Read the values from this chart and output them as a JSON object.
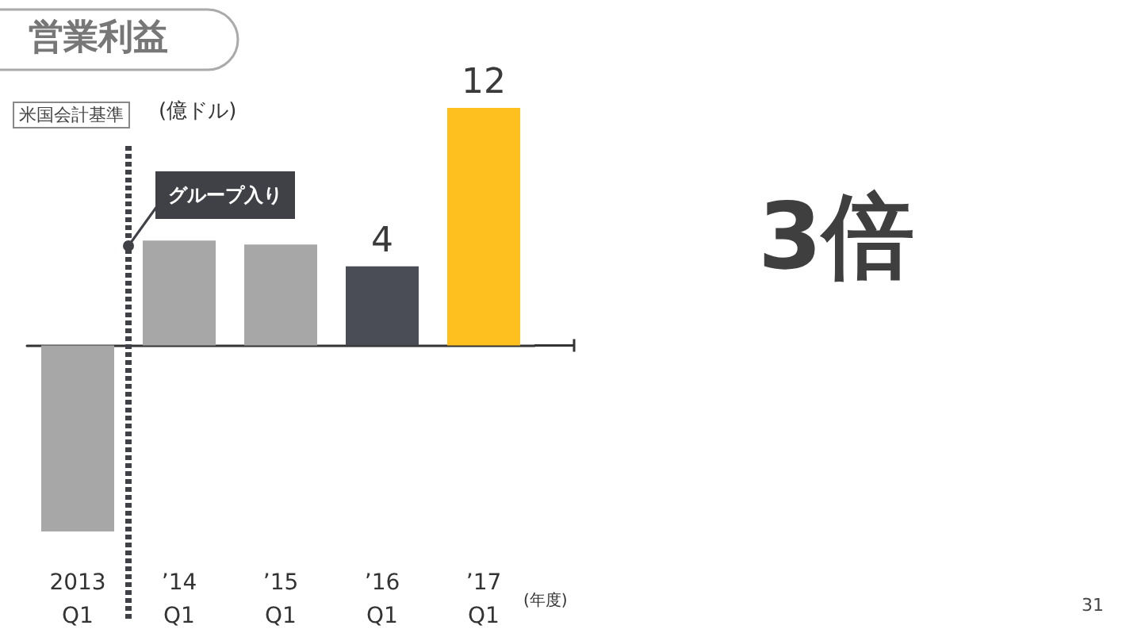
{
  "chart_data": {
    "type": "bar",
    "title": "営業利益",
    "ylabel": "(億ドル)",
    "xlabel": "(年度)",
    "tick_labels": "x",
    "categories": [
      "2013\nQ1",
      "’14\nQ1",
      "’15\nQ1",
      "’16\nQ1",
      "’17\nQ1"
    ],
    "values": [
      -9.4,
      5.3,
      5.1,
      4,
      12
    ],
    "colors": [
      "#a6a7a6",
      "#a6a7a6",
      "#a6a7a6",
      "#4a4d55",
      "#fdc01e"
    ],
    "value_labels": [
      null,
      null,
      null,
      "4",
      "12"
    ],
    "annotations": [
      "米国会計基準",
      "3倍",
      "31",
      "グループ入り"
    ]
  }
}
